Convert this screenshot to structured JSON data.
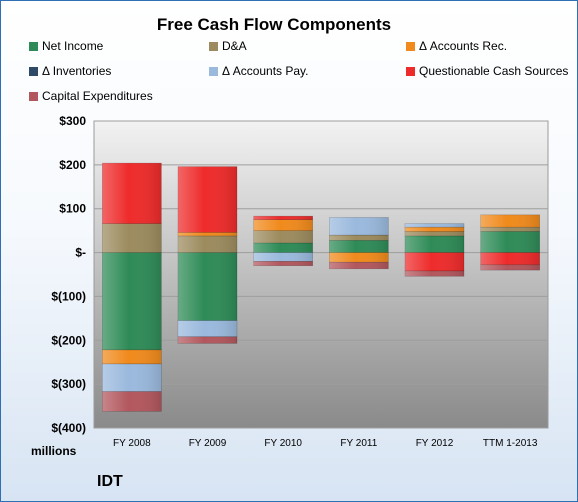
{
  "chart_data": {
    "type": "bar",
    "stacked": true,
    "title": "Free Cash Flow Components",
    "units_label": "millions",
    "company": "IDT",
    "categories": [
      "FY 2008",
      "FY 2009",
      "FY 2010",
      "FY 2011",
      "FY 2012",
      "TTM 1-2013"
    ],
    "ylim": [
      -400,
      300
    ],
    "yticks": [
      300,
      200,
      100,
      0,
      -100,
      -200,
      -300,
      -400
    ],
    "ytick_labels": [
      "$300",
      "$200",
      "$100",
      "$-",
      "$(100)",
      "$(200)",
      "$(300)",
      "$(400)"
    ],
    "grid": true,
    "legend": "top",
    "series": [
      {
        "name": "Net Income",
        "color": "#2e8b57",
        "values": [
          -222,
          -155,
          22,
          28,
          38,
          48
        ]
      },
      {
        "name": "D&A",
        "color": "#9c8b5e",
        "values": [
          66,
          38,
          28,
          12,
          10,
          10
        ]
      },
      {
        "name": "Δ Accounts Rec.",
        "color": "#f08a1c",
        "values": [
          -32,
          8,
          25,
          -22,
          10,
          28
        ]
      },
      {
        "name": "Δ Inventories",
        "color": "#2f4a66",
        "values": [
          0,
          0,
          0,
          0,
          0,
          0
        ]
      },
      {
        "name": "Δ Accounts Pay.",
        "color": "#9ab9dd",
        "values": [
          -63,
          -37,
          -20,
          40,
          8,
          0
        ]
      },
      {
        "name": "Questionable Cash Sources",
        "color": "#ee2b2b",
        "values": [
          138,
          150,
          8,
          0,
          -42,
          -28
        ]
      },
      {
        "name": "Capital Expenditures",
        "color": "#b2575d",
        "values": [
          -45,
          -15,
          -10,
          -15,
          -12,
          -12
        ]
      }
    ]
  }
}
